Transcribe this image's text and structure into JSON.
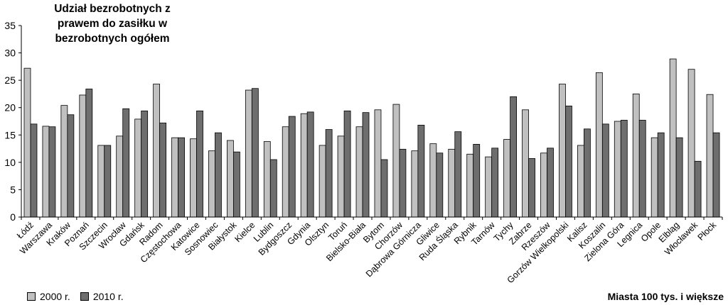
{
  "chart_data": {
    "type": "bar",
    "title": "Udział bezrobotnych z prawem do zasiłku w bezrobotnych ogółem",
    "title_lines": [
      "Udział bezrobotnych z",
      "prawem do zasiłku w",
      "bezrobotnych ogółem"
    ],
    "corner_note": "Miasta 100 tys. i większe",
    "xlabel": "",
    "ylabel": "",
    "ylim": [
      0,
      35
    ],
    "yticks": [
      0,
      5,
      10,
      15,
      20,
      25,
      30,
      35
    ],
    "grid": false,
    "legend_position": "bottom-left",
    "categories": [
      "Łódź",
      "Warszawa",
      "Kraków",
      "Poznań",
      "Szczecin",
      "Wrocław",
      "Gdańsk",
      "Radom",
      "Częstochowa",
      "Katowice",
      "Sosnowiec",
      "Białystok",
      "Kielce",
      "Lublin",
      "Bydgoszcz",
      "Gdynia",
      "Olsztyn",
      "Toruń",
      "Bielsko-Biała",
      "Bytom",
      "Chorzów",
      "Dąbrowa Górnicza",
      "Gliwice",
      "Ruda Śląska",
      "Rybnik",
      "Tarnów",
      "Tychy",
      "Zabrze",
      "Rzeszów",
      "Gorzów Wielkopolski",
      "Kalisz",
      "Koszalin",
      "Zielona Góra",
      "Legnica",
      "Opole",
      "Elbląg",
      "Włocławek",
      "Płock"
    ],
    "series": [
      {
        "name": "2000 r.",
        "color": "#c0c0c0",
        "values": [
          27.2,
          16.6,
          20.4,
          22.3,
          13.1,
          14.8,
          17.9,
          24.3,
          14.5,
          14.3,
          12.1,
          14.0,
          23.2,
          13.8,
          16.5,
          18.9,
          13.1,
          14.8,
          16.5,
          19.6,
          20.6,
          12.1,
          13.4,
          12.4,
          11.5,
          11.0,
          14.2,
          19.6,
          11.7,
          24.3,
          13.1,
          26.4,
          17.5,
          22.5,
          14.5,
          28.9,
          27.0,
          22.4
        ]
      },
      {
        "name": "2010 r.",
        "color": "#6e6e6e",
        "values": [
          17.0,
          16.5,
          18.7,
          23.4,
          13.1,
          19.8,
          19.4,
          17.2,
          14.5,
          19.4,
          15.4,
          11.9,
          23.5,
          10.5,
          18.4,
          19.2,
          16.0,
          19.4,
          19.1,
          10.5,
          12.4,
          16.8,
          11.7,
          15.6,
          13.3,
          12.6,
          22.0,
          10.7,
          12.6,
          20.3,
          16.1,
          17.0,
          17.7,
          17.7,
          15.4,
          14.5,
          10.2,
          15.4
        ]
      }
    ]
  }
}
